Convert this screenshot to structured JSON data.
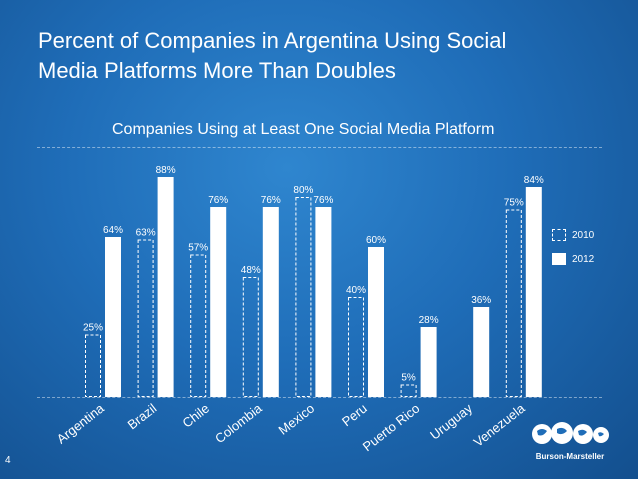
{
  "slide": {
    "title_line1": "Percent of Companies in Argentina Using Social",
    "title_line2": "Media Platforms More Than Doubles",
    "page_number": "4",
    "logo_text": "Burson-Marsteller"
  },
  "colors": {
    "background": "#1f6db8",
    "bar_2012": "#ffffff",
    "bar_2010_outline": "#ffffff"
  },
  "chart_data": {
    "type": "bar",
    "subtitle": "Companies  Using at Least One Social Media Platform",
    "categories": [
      "Argentina",
      "Brazil",
      "Chile",
      "Colombia",
      "Mexico",
      "Peru",
      "Puerto Rico",
      "Uruguay",
      "Venezuela"
    ],
    "series": [
      {
        "name": "2010",
        "style": "dashed-outline",
        "values": [
          25,
          63,
          57,
          48,
          80,
          40,
          5,
          null,
          75
        ]
      },
      {
        "name": "2012",
        "style": "solid-white",
        "values": [
          64,
          88,
          76,
          76,
          76,
          60,
          28,
          36,
          84
        ]
      }
    ],
    "ylim": [
      0,
      100
    ],
    "grid": false,
    "legend_position": "right",
    "data_labels": true,
    "value_suffix": "%"
  }
}
